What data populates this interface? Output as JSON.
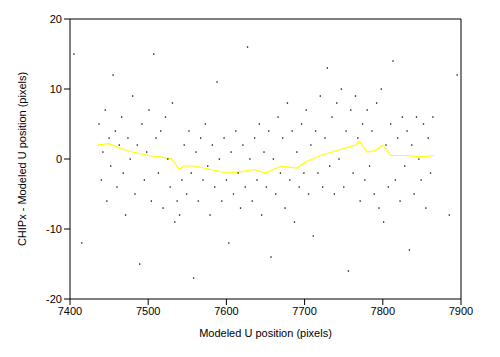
{
  "chart_data": {
    "type": "scatter",
    "x_label": "Modeled U position (pixels)",
    "y_label": "CHIPx - Modeled U position (pixels)",
    "xlim": [
      7400,
      7900
    ],
    "xticks": [
      7400,
      7500,
      7600,
      7700,
      7800,
      7900
    ],
    "ylim": [
      -20,
      20
    ],
    "yticks": [
      -20,
      -10,
      0,
      10,
      20
    ],
    "grid": false,
    "series": [
      {
        "type": "scatter",
        "color": "#000000",
        "marker": "dot",
        "x": [
          7437,
          7440,
          7442,
          7445,
          7447,
          7450,
          7452,
          7455,
          7458,
          7460,
          7463,
          7466,
          7468,
          7471,
          7474,
          7477,
          7480,
          7483,
          7486,
          7489,
          7492,
          7495,
          7498,
          7501,
          7504,
          7507,
          7510,
          7513,
          7516,
          7519,
          7522,
          7525,
          7528,
          7531,
          7534,
          7537,
          7540,
          7543,
          7546,
          7549,
          7552,
          7555,
          7558,
          7561,
          7564,
          7567,
          7570,
          7573,
          7576,
          7579,
          7582,
          7585,
          7588,
          7591,
          7594,
          7597,
          7600,
          7603,
          7606,
          7609,
          7612,
          7615,
          7618,
          7621,
          7624,
          7627,
          7630,
          7633,
          7636,
          7639,
          7642,
          7645,
          7648,
          7651,
          7654,
          7657,
          7660,
          7663,
          7666,
          7669,
          7672,
          7675,
          7678,
          7681,
          7684,
          7687,
          7690,
          7693,
          7696,
          7699,
          7702,
          7705,
          7708,
          7711,
          7714,
          7717,
          7720,
          7723,
          7726,
          7729,
          7732,
          7735,
          7738,
          7741,
          7744,
          7747,
          7750,
          7753,
          7756,
          7759,
          7762,
          7765,
          7768,
          7771,
          7774,
          7777,
          7780,
          7783,
          7786,
          7789,
          7792,
          7795,
          7798,
          7801,
          7804,
          7807,
          7810,
          7813,
          7816,
          7819,
          7822,
          7825,
          7828,
          7831,
          7834,
          7837,
          7840,
          7843,
          7846,
          7849,
          7852,
          7855,
          7858,
          7861,
          7864,
          7405,
          7415,
          7885,
          7895
        ],
        "values": [
          5,
          -3,
          1,
          7,
          -6,
          3,
          -1,
          12,
          4,
          -4,
          2,
          6,
          -2,
          -8,
          3,
          0,
          9,
          -5,
          2,
          -15,
          5,
          -3,
          1,
          7,
          -6,
          15,
          3,
          -2,
          4,
          -7,
          6,
          0,
          -4,
          8,
          -9,
          -6,
          -8,
          -3,
          2,
          -5,
          4,
          -2,
          -17,
          1,
          -6,
          3,
          -3,
          5,
          -1,
          -8,
          2,
          -4,
          11,
          0,
          -6,
          3,
          -3,
          -12,
          1,
          -5,
          4,
          -2,
          -7,
          2,
          -4,
          16,
          0,
          -6,
          3,
          -3,
          5,
          -8,
          1,
          -4,
          4,
          -14,
          0,
          -5,
          6,
          -2,
          3,
          -7,
          8,
          -3,
          4,
          -9,
          1,
          -4,
          5,
          -2,
          7,
          -5,
          2,
          -11,
          4,
          -2,
          9,
          -4,
          3,
          13,
          -1,
          6,
          -5,
          8,
          0,
          10,
          -4,
          4,
          -16,
          7,
          -2,
          9,
          3,
          -6,
          5,
          -3,
          7,
          -1,
          4,
          -5,
          8,
          -7,
          10,
          -9,
          2,
          -4,
          5,
          14,
          -3,
          3,
          -6,
          6,
          -1,
          4,
          -13,
          2,
          -5,
          6,
          0,
          -3,
          5,
          -7,
          3,
          -2,
          6,
          15,
          -12,
          -8,
          12
        ]
      },
      {
        "type": "line",
        "color": "#ffff00",
        "line_style": "solid",
        "x": [
          7435,
          7450,
          7465,
          7480,
          7500,
          7515,
          7530,
          7540,
          7545,
          7560,
          7580,
          7600,
          7620,
          7635,
          7650,
          7670,
          7690,
          7700,
          7720,
          7735,
          7750,
          7765,
          7770,
          7780,
          7790,
          7800,
          7810,
          7830,
          7850,
          7865
        ],
        "values": [
          2,
          2.2,
          1.5,
          1,
          0.5,
          0.3,
          0,
          -1.5,
          -1,
          -1,
          -1.5,
          -2,
          -1.8,
          -1.5,
          -2,
          -1,
          -1.3,
          -0.5,
          0.5,
          1,
          1.5,
          2,
          2.5,
          1,
          1.2,
          2,
          0.5,
          0.5,
          0.3,
          0.5
        ]
      }
    ]
  }
}
